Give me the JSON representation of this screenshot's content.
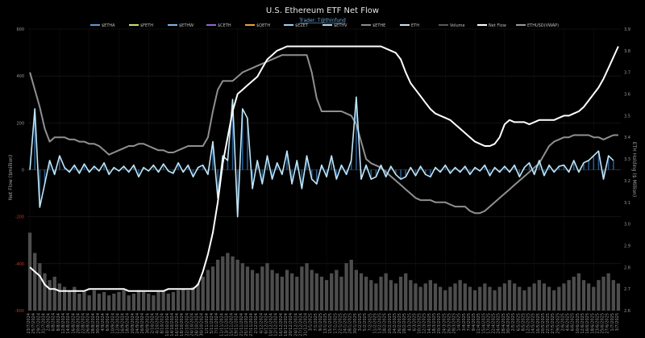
{
  "chart_data": {
    "type": "line",
    "title": "U.S. Ethereum ETF Net Flow",
    "subtitle": "Trader: T@thinfund",
    "ylabel_left": "Net Flow ($million)",
    "ylabel_right": "ETH Holding ($ Million)",
    "yticks_left": [
      "600",
      "400",
      "200",
      "0",
      "-200",
      "-400",
      "-600"
    ],
    "yticks_right": [
      "3.9",
      "3.8",
      "3.7",
      "3.6",
      "3.5",
      "3.4",
      "3.3",
      "3.2",
      "3.1",
      "3.0",
      "2.9",
      "2.8",
      "2.7",
      "2.6"
    ],
    "ylim_left": [
      -600,
      600
    ],
    "ylim_right": [
      2.6,
      3.9
    ],
    "grid": true,
    "legend": [
      {
        "name": "$ETHA",
        "color": "#5b9bd5"
      },
      {
        "name": "$FETH",
        "color": "#c9e265"
      },
      {
        "name": "$ETHW",
        "color": "#7fb3e8"
      },
      {
        "name": "$CETH",
        "color": "#8e6ac8"
      },
      {
        "name": "$QETH",
        "color": "#e8a33c"
      },
      {
        "name": "$EZET",
        "color": "#9ccfee"
      },
      {
        "name": "$ETHV",
        "color": "#b7d7f0"
      },
      {
        "name": "$ETHE",
        "color": "#8c8c8c"
      },
      {
        "name": "ETH",
        "color": "#c6e3f5"
      },
      {
        "name": "Volume",
        "color": "#595959"
      },
      {
        "name": "Net Flow",
        "color": "#ffffff"
      },
      {
        "name": "ETHUSD(VWAP)",
        "color": "#9a9a9a"
      }
    ],
    "x_labels": [
      "23/7/2024",
      "25/7/2024",
      "29/7/2024",
      "31/7/2024",
      "2/8/2024",
      "6/8/2024",
      "8/8/2024",
      "12/8/2024",
      "14/8/2024",
      "16/8/2024",
      "20/8/2024",
      "22/8/2024",
      "26/8/2024",
      "28/8/2024",
      "30/8/2024",
      "4/9/2024",
      "6/9/2024",
      "10/9/2024",
      "12/9/2024",
      "16/9/2024",
      "18/9/2024",
      "20/9/2024",
      "24/9/2024",
      "26/9/2024",
      "30/9/2024",
      "2/10/2024",
      "4/10/2024",
      "8/10/2024",
      "10/10/2024",
      "14/10/2024",
      "16/10/2024",
      "18/10/2024",
      "22/10/2024",
      "24/10/2024",
      "28/10/2024",
      "30/10/2024",
      "1/11/2024",
      "5/11/2024",
      "7/11/2024",
      "11/11/2024",
      "13/11/2024",
      "15/11/2024",
      "19/11/2024",
      "21/11/2024",
      "25/11/2024",
      "27/11/2024",
      "2/12/2024",
      "4/12/2024",
      "6/12/2024",
      "10/12/2024",
      "12/12/2024",
      "16/12/2024",
      "18/12/2024",
      "20/12/2024",
      "24/12/2024",
      "27/12/2024",
      "31/12/2024",
      "3/1/2025",
      "7/1/2025",
      "9/1/2025",
      "13/1/2025",
      "15/1/2025",
      "17/1/2025",
      "22/1/2025",
      "24/1/2025",
      "28/1/2025",
      "30/1/2025",
      "3/2/2025",
      "5/2/2025",
      "7/2/2025",
      "11/2/2025",
      "13/2/2025",
      "18/2/2025",
      "20/2/2025",
      "24/2/2025",
      "26/2/2025",
      "28/2/2025",
      "4/3/2025",
      "6/3/2025",
      "10/3/2025",
      "12/3/2025",
      "14/3/2025",
      "18/3/2025",
      "20/3/2025",
      "24/3/2025",
      "26/3/2025",
      "28/3/2025",
      "1/4/2025",
      "3/4/2025",
      "7/4/2025",
      "9/4/2025",
      "11/4/2025",
      "15/4/2025",
      "17/4/2025",
      "22/4/2025",
      "24/4/2025",
      "28/4/2025",
      "30/4/2025",
      "2/5/2025",
      "6/5/2025",
      "8/5/2025",
      "12/5/2025",
      "14/5/2025",
      "16/5/2025",
      "20/5/2025",
      "22/5/2025",
      "27/5/2025",
      "29/5/2025",
      "2/6/2025",
      "4/6/2025",
      "6/6/2025",
      "10/6/2025",
      "12/6/2025",
      "16/6/2025",
      "18/6/2025",
      "23/6/2025",
      "25/6/2025",
      "27/6/2025",
      "1/7/2025",
      "3/7/2025"
    ],
    "series": [
      {
        "name": "Net Flow",
        "axis": "right",
        "values": [
          2.8,
          2.78,
          2.76,
          2.72,
          2.7,
          2.7,
          2.69,
          2.69,
          2.69,
          2.69,
          2.69,
          2.69,
          2.7,
          2.7,
          2.7,
          2.7,
          2.7,
          2.7,
          2.7,
          2.7,
          2.69,
          2.69,
          2.69,
          2.69,
          2.69,
          2.69,
          2.69,
          2.69,
          2.7,
          2.7,
          2.7,
          2.7,
          2.7,
          2.7,
          2.72,
          2.78,
          2.86,
          2.96,
          3.1,
          3.28,
          3.4,
          3.52,
          3.6,
          3.62,
          3.64,
          3.66,
          3.68,
          3.72,
          3.76,
          3.78,
          3.8,
          3.81,
          3.82,
          3.82,
          3.82,
          3.82,
          3.82,
          3.82,
          3.82,
          3.82,
          3.82,
          3.82,
          3.82,
          3.82,
          3.82,
          3.82,
          3.82,
          3.82,
          3.82,
          3.82,
          3.82,
          3.82,
          3.81,
          3.8,
          3.79,
          3.76,
          3.7,
          3.65,
          3.62,
          3.59,
          3.56,
          3.53,
          3.51,
          3.5,
          3.49,
          3.48,
          3.46,
          3.44,
          3.42,
          3.4,
          3.38,
          3.37,
          3.36,
          3.36,
          3.37,
          3.4,
          3.46,
          3.48,
          3.47,
          3.47,
          3.47,
          3.46,
          3.47,
          3.48,
          3.48,
          3.48,
          3.48,
          3.49,
          3.5,
          3.5,
          3.51,
          3.52,
          3.54,
          3.57,
          3.6,
          3.63,
          3.67,
          3.72,
          3.77,
          3.82
        ]
      },
      {
        "name": "ETHUSD(VWAP)",
        "axis": "right",
        "values": [
          3.7,
          3.62,
          3.54,
          3.44,
          3.38,
          3.4,
          3.4,
          3.4,
          3.39,
          3.39,
          3.38,
          3.38,
          3.37,
          3.37,
          3.36,
          3.34,
          3.32,
          3.33,
          3.34,
          3.35,
          3.36,
          3.36,
          3.37,
          3.37,
          3.36,
          3.35,
          3.34,
          3.34,
          3.33,
          3.33,
          3.34,
          3.35,
          3.36,
          3.36,
          3.36,
          3.36,
          3.4,
          3.52,
          3.62,
          3.66,
          3.66,
          3.66,
          3.68,
          3.7,
          3.71,
          3.72,
          3.73,
          3.74,
          3.75,
          3.76,
          3.77,
          3.78,
          3.78,
          3.78,
          3.78,
          3.78,
          3.78,
          3.7,
          3.58,
          3.52,
          3.52,
          3.52,
          3.52,
          3.52,
          3.51,
          3.5,
          3.46,
          3.38,
          3.3,
          3.28,
          3.27,
          3.26,
          3.24,
          3.22,
          3.2,
          3.18,
          3.16,
          3.14,
          3.12,
          3.11,
          3.11,
          3.11,
          3.1,
          3.1,
          3.1,
          3.09,
          3.08,
          3.08,
          3.08,
          3.06,
          3.05,
          3.05,
          3.06,
          3.08,
          3.1,
          3.12,
          3.14,
          3.16,
          3.18,
          3.2,
          3.22,
          3.24,
          3.26,
          3.28,
          3.32,
          3.36,
          3.38,
          3.39,
          3.4,
          3.4,
          3.41,
          3.41,
          3.41,
          3.41,
          3.4,
          3.4,
          3.39,
          3.4,
          3.41,
          3.41
        ]
      },
      {
        "name": "ETH",
        "axis": "left",
        "values": [
          0,
          260,
          -160,
          -60,
          40,
          -20,
          60,
          10,
          -10,
          20,
          -15,
          25,
          -10,
          15,
          -5,
          30,
          -20,
          10,
          -5,
          15,
          -10,
          20,
          -30,
          10,
          -5,
          20,
          -10,
          25,
          -5,
          -15,
          30,
          -10,
          20,
          -30,
          10,
          20,
          -20,
          120,
          -120,
          60,
          40,
          300,
          -200,
          260,
          220,
          -80,
          40,
          -60,
          60,
          -40,
          30,
          -20,
          80,
          -60,
          40,
          -80,
          60,
          -40,
          -60,
          20,
          -30,
          60,
          -40,
          20,
          -20,
          40,
          310,
          -40,
          20,
          -40,
          -30,
          20,
          -30,
          15,
          -20,
          -40,
          -30,
          10,
          -25,
          15,
          -20,
          -30,
          10,
          -10,
          20,
          -15,
          10,
          -10,
          15,
          -20,
          10,
          -5,
          20,
          -25,
          10,
          -10,
          15,
          -10,
          20,
          -30,
          10,
          30,
          -20,
          40,
          -25,
          20,
          -10,
          15,
          20,
          -10,
          40,
          -10,
          30,
          40,
          60,
          80,
          -40,
          60,
          40
        ]
      },
      {
        "name": "Volume",
        "axis": "left",
        "values": [
          230,
          170,
          140,
          110,
          90,
          100,
          80,
          70,
          60,
          70,
          50,
          55,
          45,
          60,
          50,
          55,
          45,
          50,
          55,
          60,
          45,
          50,
          60,
          55,
          50,
          45,
          55,
          60,
          50,
          55,
          60,
          65,
          60,
          70,
          80,
          100,
          120,
          130,
          150,
          160,
          170,
          160,
          150,
          140,
          130,
          120,
          110,
          130,
          140,
          120,
          110,
          100,
          120,
          110,
          100,
          130,
          140,
          120,
          110,
          100,
          90,
          110,
          120,
          100,
          140,
          150,
          120,
          110,
          100,
          90,
          80,
          100,
          110,
          90,
          80,
          100,
          110,
          90,
          80,
          70,
          80,
          90,
          80,
          70,
          60,
          70,
          80,
          90,
          80,
          70,
          60,
          70,
          80,
          70,
          60,
          70,
          80,
          90,
          80,
          70,
          60,
          70,
          80,
          90,
          80,
          70,
          60,
          70,
          80,
          90,
          100,
          110,
          90,
          80,
          70,
          90,
          100,
          110,
          90,
          80
        ]
      }
    ]
  }
}
